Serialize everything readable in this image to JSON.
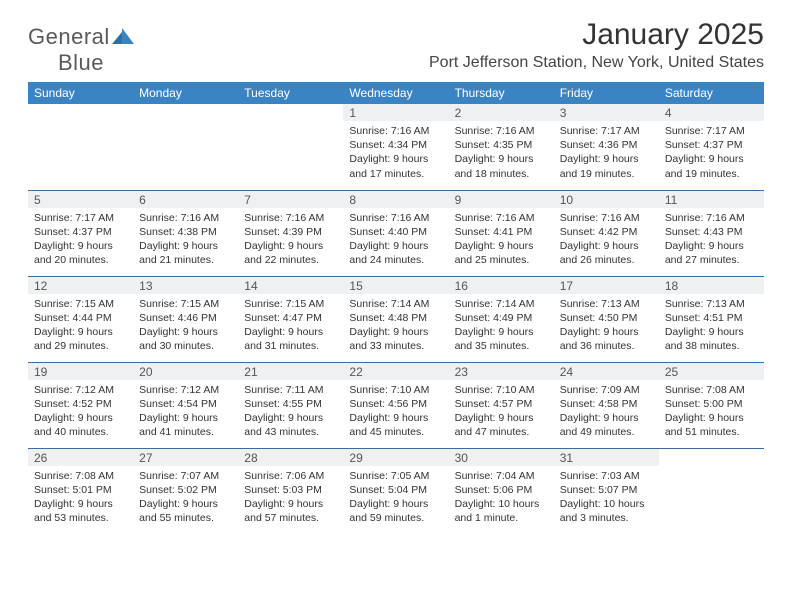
{
  "brand": {
    "name_part1": "General",
    "name_part2": "Blue"
  },
  "title": "January 2025",
  "location": "Port Jefferson Station, New York, United States",
  "colors": {
    "header_bg": "#3b84c4",
    "header_text": "#ffffff",
    "daynum_bg": "#eef0f2",
    "border": "#3b6d9a",
    "logo_text": "#5a5a5a",
    "title_text": "#333333"
  },
  "day_labels": [
    "Sunday",
    "Monday",
    "Tuesday",
    "Wednesday",
    "Thursday",
    "Friday",
    "Saturday"
  ],
  "weeks": [
    [
      null,
      null,
      null,
      {
        "n": "1",
        "sunrise": "7:16 AM",
        "sunset": "4:34 PM",
        "daylight": "9 hours and 17 minutes."
      },
      {
        "n": "2",
        "sunrise": "7:16 AM",
        "sunset": "4:35 PM",
        "daylight": "9 hours and 18 minutes."
      },
      {
        "n": "3",
        "sunrise": "7:17 AM",
        "sunset": "4:36 PM",
        "daylight": "9 hours and 19 minutes."
      },
      {
        "n": "4",
        "sunrise": "7:17 AM",
        "sunset": "4:37 PM",
        "daylight": "9 hours and 19 minutes."
      }
    ],
    [
      {
        "n": "5",
        "sunrise": "7:17 AM",
        "sunset": "4:37 PM",
        "daylight": "9 hours and 20 minutes."
      },
      {
        "n": "6",
        "sunrise": "7:16 AM",
        "sunset": "4:38 PM",
        "daylight": "9 hours and 21 minutes."
      },
      {
        "n": "7",
        "sunrise": "7:16 AM",
        "sunset": "4:39 PM",
        "daylight": "9 hours and 22 minutes."
      },
      {
        "n": "8",
        "sunrise": "7:16 AM",
        "sunset": "4:40 PM",
        "daylight": "9 hours and 24 minutes."
      },
      {
        "n": "9",
        "sunrise": "7:16 AM",
        "sunset": "4:41 PM",
        "daylight": "9 hours and 25 minutes."
      },
      {
        "n": "10",
        "sunrise": "7:16 AM",
        "sunset": "4:42 PM",
        "daylight": "9 hours and 26 minutes."
      },
      {
        "n": "11",
        "sunrise": "7:16 AM",
        "sunset": "4:43 PM",
        "daylight": "9 hours and 27 minutes."
      }
    ],
    [
      {
        "n": "12",
        "sunrise": "7:15 AM",
        "sunset": "4:44 PM",
        "daylight": "9 hours and 29 minutes."
      },
      {
        "n": "13",
        "sunrise": "7:15 AM",
        "sunset": "4:46 PM",
        "daylight": "9 hours and 30 minutes."
      },
      {
        "n": "14",
        "sunrise": "7:15 AM",
        "sunset": "4:47 PM",
        "daylight": "9 hours and 31 minutes."
      },
      {
        "n": "15",
        "sunrise": "7:14 AM",
        "sunset": "4:48 PM",
        "daylight": "9 hours and 33 minutes."
      },
      {
        "n": "16",
        "sunrise": "7:14 AM",
        "sunset": "4:49 PM",
        "daylight": "9 hours and 35 minutes."
      },
      {
        "n": "17",
        "sunrise": "7:13 AM",
        "sunset": "4:50 PM",
        "daylight": "9 hours and 36 minutes."
      },
      {
        "n": "18",
        "sunrise": "7:13 AM",
        "sunset": "4:51 PM",
        "daylight": "9 hours and 38 minutes."
      }
    ],
    [
      {
        "n": "19",
        "sunrise": "7:12 AM",
        "sunset": "4:52 PM",
        "daylight": "9 hours and 40 minutes."
      },
      {
        "n": "20",
        "sunrise": "7:12 AM",
        "sunset": "4:54 PM",
        "daylight": "9 hours and 41 minutes."
      },
      {
        "n": "21",
        "sunrise": "7:11 AM",
        "sunset": "4:55 PM",
        "daylight": "9 hours and 43 minutes."
      },
      {
        "n": "22",
        "sunrise": "7:10 AM",
        "sunset": "4:56 PM",
        "daylight": "9 hours and 45 minutes."
      },
      {
        "n": "23",
        "sunrise": "7:10 AM",
        "sunset": "4:57 PM",
        "daylight": "9 hours and 47 minutes."
      },
      {
        "n": "24",
        "sunrise": "7:09 AM",
        "sunset": "4:58 PM",
        "daylight": "9 hours and 49 minutes."
      },
      {
        "n": "25",
        "sunrise": "7:08 AM",
        "sunset": "5:00 PM",
        "daylight": "9 hours and 51 minutes."
      }
    ],
    [
      {
        "n": "26",
        "sunrise": "7:08 AM",
        "sunset": "5:01 PM",
        "daylight": "9 hours and 53 minutes."
      },
      {
        "n": "27",
        "sunrise": "7:07 AM",
        "sunset": "5:02 PM",
        "daylight": "9 hours and 55 minutes."
      },
      {
        "n": "28",
        "sunrise": "7:06 AM",
        "sunset": "5:03 PM",
        "daylight": "9 hours and 57 minutes."
      },
      {
        "n": "29",
        "sunrise": "7:05 AM",
        "sunset": "5:04 PM",
        "daylight": "9 hours and 59 minutes."
      },
      {
        "n": "30",
        "sunrise": "7:04 AM",
        "sunset": "5:06 PM",
        "daylight": "10 hours and 1 minute."
      },
      {
        "n": "31",
        "sunrise": "7:03 AM",
        "sunset": "5:07 PM",
        "daylight": "10 hours and 3 minutes."
      },
      null
    ]
  ],
  "labels": {
    "sunrise_prefix": "Sunrise: ",
    "sunset_prefix": "Sunset: ",
    "daylight_prefix": "Daylight: "
  }
}
